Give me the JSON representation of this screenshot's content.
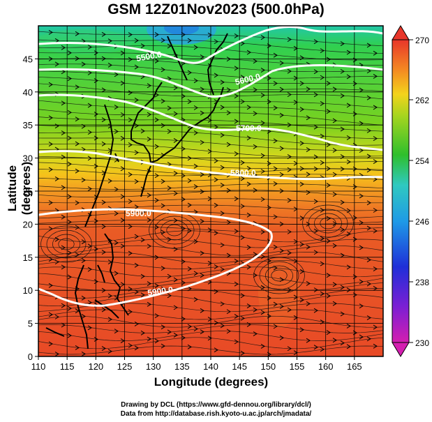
{
  "title": "GSM 12Z01Nov2023 (500.0hPa)",
  "x_axis_label": "Longitude (degrees)",
  "y_axis_label": "Latitude  (degrees)",
  "x_ticks": [
    "110",
    "115",
    "120",
    "125",
    "130",
    "135",
    "140",
    "145",
    "150",
    "155",
    "160",
    "165"
  ],
  "y_ticks": [
    "0",
    "5",
    "10",
    "15",
    "20",
    "25",
    "30",
    "35",
    "40",
    "45"
  ],
  "colorbar_ticks": [
    "270",
    "262",
    "254",
    "246",
    "238",
    "230"
  ],
  "contour_labels": [
    "5500.0",
    "5600.0",
    "5700.0",
    "5800.0",
    "5900.0",
    "5900.0"
  ],
  "credits": {
    "line1": "Drawing by DCL (https://www.gfd-dennou.org/library/dcl/)",
    "line2": "Data from http://database.rish.kyoto-u.ac.jp/arch/jmadata/"
  },
  "colors": {
    "warm": "#e84a26",
    "orange": "#f48a22",
    "yellow": "#f3d31c",
    "green": "#2fbf2c",
    "cyan": "#2fc9c0",
    "blue": "#1f7ae0",
    "contour": "#ffffff",
    "coast": "#000000"
  }
}
